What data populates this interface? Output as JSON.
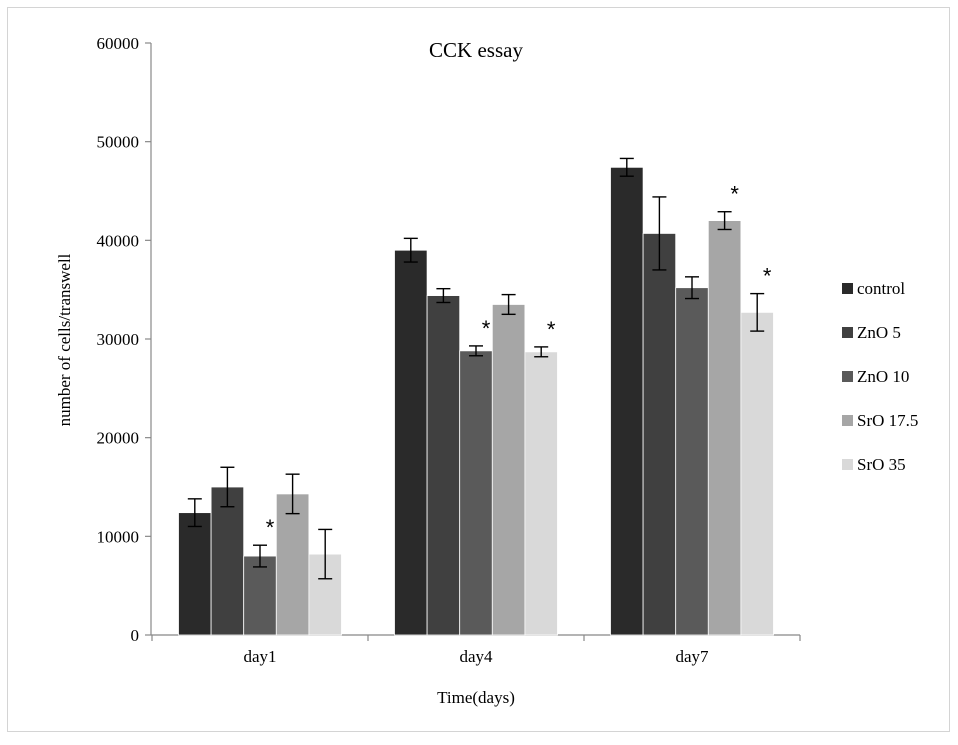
{
  "chart_data": {
    "type": "bar",
    "title": "CCK essay",
    "xlabel": "Time(days)",
    "ylabel": "number of cells/transwell",
    "ylim": [
      0,
      60000
    ],
    "yticks": [
      0,
      10000,
      20000,
      30000,
      40000,
      50000,
      60000
    ],
    "yticklabels": [
      "0",
      "10000",
      "20000",
      "30000",
      "40000",
      "50000",
      "60000"
    ],
    "grid": false,
    "legend_position": "right",
    "categories": [
      "day1",
      "day4",
      "day7"
    ],
    "series": [
      {
        "name": "control",
        "color": "#2a2a2a",
        "values": [
          12400,
          39000,
          47400
        ],
        "errors": [
          1400,
          1200,
          900
        ],
        "significant": [
          false,
          false,
          false
        ]
      },
      {
        "name": "ZnO 5",
        "color": "#404040",
        "values": [
          15000,
          34400,
          40700
        ],
        "errors": [
          2000,
          700,
          3700
        ],
        "significant": [
          false,
          false,
          false
        ]
      },
      {
        "name": "ZnO 10",
        "color": "#5a5a5a",
        "values": [
          8000,
          28800,
          35200
        ],
        "errors": [
          1100,
          500,
          1100
        ],
        "significant": [
          true,
          true,
          false
        ]
      },
      {
        "name": "SrO 17.5",
        "color": "#a6a6a6",
        "values": [
          14300,
          33500,
          42000
        ],
        "errors": [
          2000,
          1000,
          900
        ],
        "significant": [
          false,
          false,
          true
        ]
      },
      {
        "name": "SrO 35",
        "color": "#d9d9d9",
        "values": [
          8200,
          28700,
          32700
        ],
        "errors": [
          2500,
          500,
          1900
        ],
        "significant": [
          false,
          true,
          true
        ]
      }
    ],
    "annotation_symbol": "*"
  }
}
